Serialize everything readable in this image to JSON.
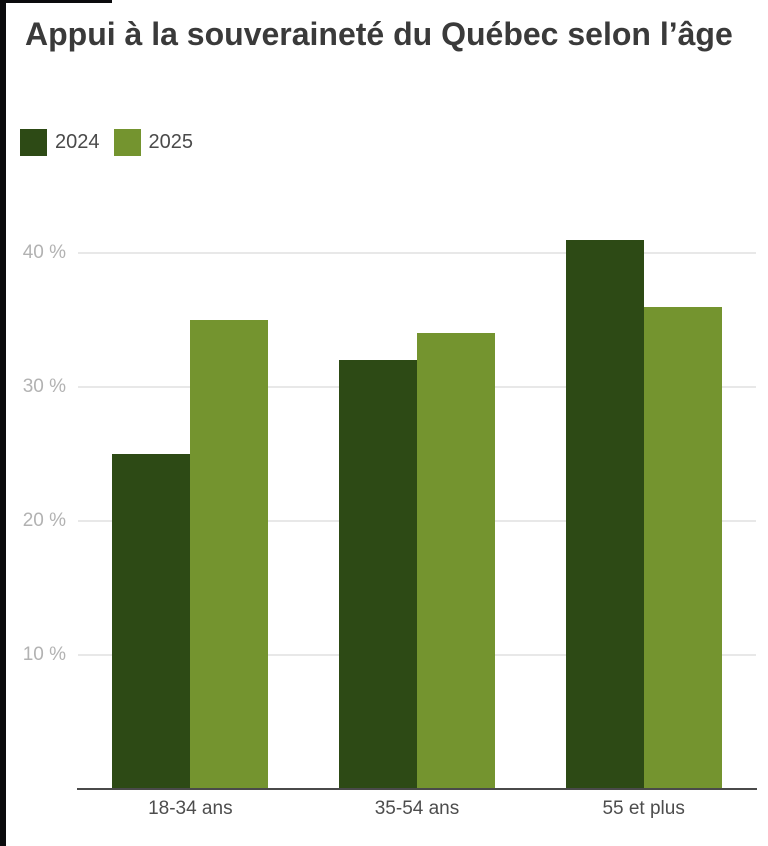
{
  "page": {
    "background": "#ffffff",
    "edge_color": "#0b0b0d"
  },
  "chart_data": {
    "type": "bar",
    "title": "Appui à la souveraineté du Québec selon l’âge",
    "categories": [
      "18-34 ans",
      "35-54 ans",
      "55 et plus"
    ],
    "series": [
      {
        "name": "2024",
        "color": "#2d4a15",
        "values": [
          25,
          32,
          41
        ]
      },
      {
        "name": "2025",
        "color": "#74942f",
        "values": [
          35,
          34,
          36
        ]
      }
    ],
    "unit": "%",
    "ylim": [
      0,
      43
    ],
    "y_ticks": [
      {
        "value": 10,
        "label": "10 %"
      },
      {
        "value": 20,
        "label": "20 %"
      },
      {
        "value": 30,
        "label": "30 %"
      },
      {
        "value": 40,
        "label": "40 %"
      }
    ],
    "grid": true,
    "legend_position": "top-left",
    "xlabel": "",
    "ylabel": ""
  }
}
